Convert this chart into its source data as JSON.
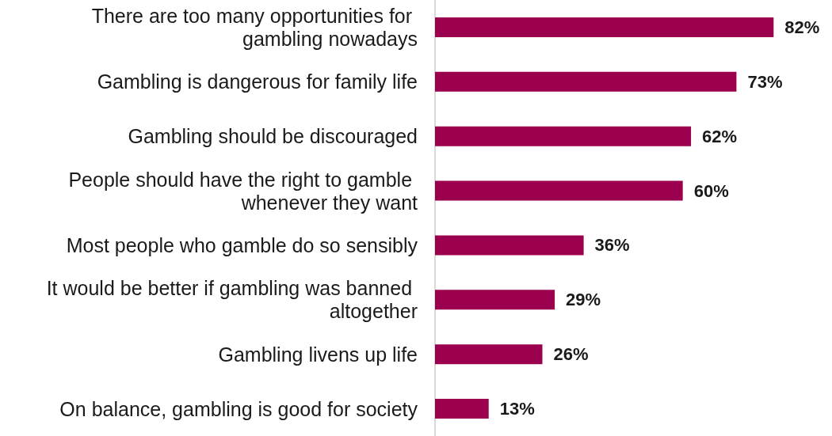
{
  "chart_data": {
    "type": "bar",
    "orientation": "horizontal",
    "categories": [
      "There are too many opportunities for gambling nowadays",
      "Gambling is dangerous for family life",
      "Gambling should be discouraged",
      "People should have the right to gamble whenever they want",
      "Most people who gamble do so sensibly",
      "It would be better if gambling was banned altogether",
      "Gambling livens up life",
      "On balance, gambling is good for society"
    ],
    "values": [
      82,
      73,
      62,
      60,
      36,
      29,
      26,
      13
    ],
    "value_labels": [
      "82%",
      "73%",
      "62%",
      "60%",
      "36%",
      "29%",
      "26%",
      "13%"
    ],
    "color": "#9b004f",
    "tick_labels": "y",
    "grid": false
  }
}
